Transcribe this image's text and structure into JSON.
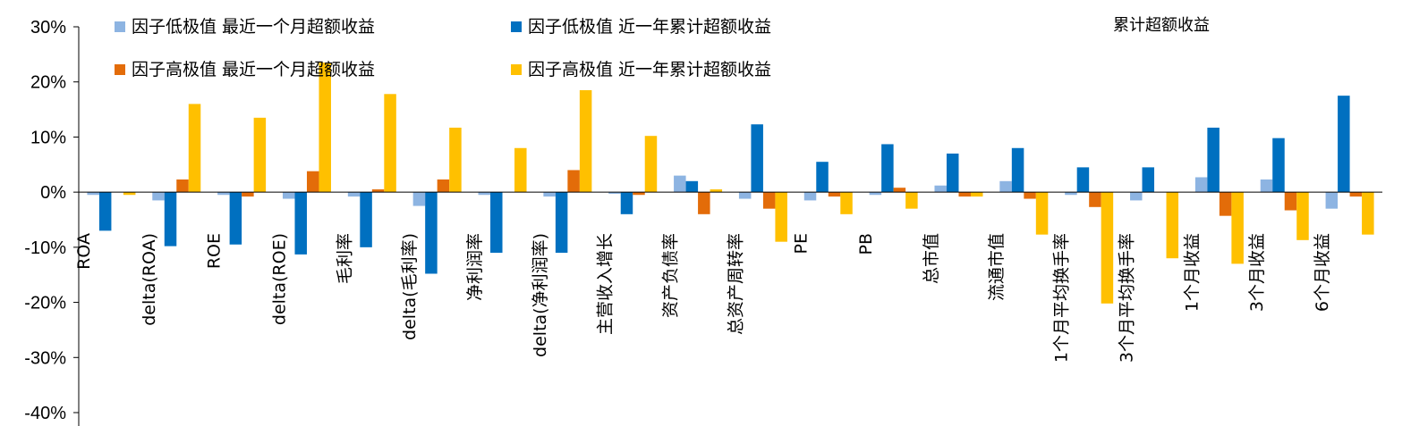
{
  "chart_data": {
    "type": "bar",
    "title": "累计超额收益",
    "xlabel": "",
    "ylabel": "",
    "ylim": [
      -40,
      30
    ],
    "yticks": [
      "30%",
      "20%",
      "10%",
      "0%",
      "-10%",
      "-20%",
      "-30%",
      "-40%"
    ],
    "ytick_values": [
      30,
      20,
      10,
      0,
      -10,
      -20,
      -30,
      -40
    ],
    "grid": false,
    "legend_position": "top-left",
    "categories": [
      "ROA",
      "delta(ROA)",
      "ROE",
      "delta(ROE)",
      "毛利率",
      "delta(毛利率)",
      "净利润率",
      "delta(净利润率)",
      "主营收入增长",
      "资产负债率",
      "总资产周转率",
      "PE",
      "PB",
      "总市值",
      "流通市值",
      "1个月平均换手率",
      "3个月平均换手率",
      "1个月收益",
      "3个月收益",
      "6个月收益"
    ],
    "series": [
      {
        "name": "因子低极值 最近一个月超额收益",
        "color": "#8DB4E2",
        "values": [
          -0.5,
          -1.5,
          -0.5,
          -1.2,
          -0.8,
          -2.5,
          -0.5,
          -0.8,
          -0.3,
          3.0,
          -1.2,
          -1.5,
          -0.5,
          1.2,
          2.0,
          -0.5,
          -1.5,
          2.7,
          2.3,
          -3.0
        ]
      },
      {
        "name": "因子低极值 近一年累计超额收益",
        "color": "#0070C0",
        "values": [
          -7.0,
          -9.8,
          -9.5,
          -11.3,
          -10.0,
          -14.8,
          -11.0,
          -11.0,
          -4.0,
          2.0,
          12.3,
          5.5,
          8.7,
          7.0,
          8.0,
          4.5,
          4.5,
          11.7,
          9.8,
          17.5
        ]
      },
      {
        "name": "因子高极值 最近一个月超额收益",
        "color": "#E36C09",
        "values": [
          0,
          2.3,
          -0.8,
          3.8,
          0.5,
          2.3,
          0,
          4.0,
          -0.5,
          -4.0,
          -3.0,
          -0.8,
          0.8,
          -0.8,
          -1.2,
          -2.7,
          0,
          -4.3,
          -3.3,
          -0.8
        ]
      },
      {
        "name": "因子高极值 近一年累计超额收益",
        "color": "#FFC000",
        "values": [
          -0.5,
          16.0,
          13.5,
          23.5,
          17.8,
          11.7,
          8.0,
          18.5,
          10.2,
          0.5,
          -9.0,
          -4.0,
          -3.0,
          -0.8,
          -7.7,
          -20.2,
          -12.0,
          -13.0,
          -8.7,
          -7.7
        ]
      }
    ]
  }
}
